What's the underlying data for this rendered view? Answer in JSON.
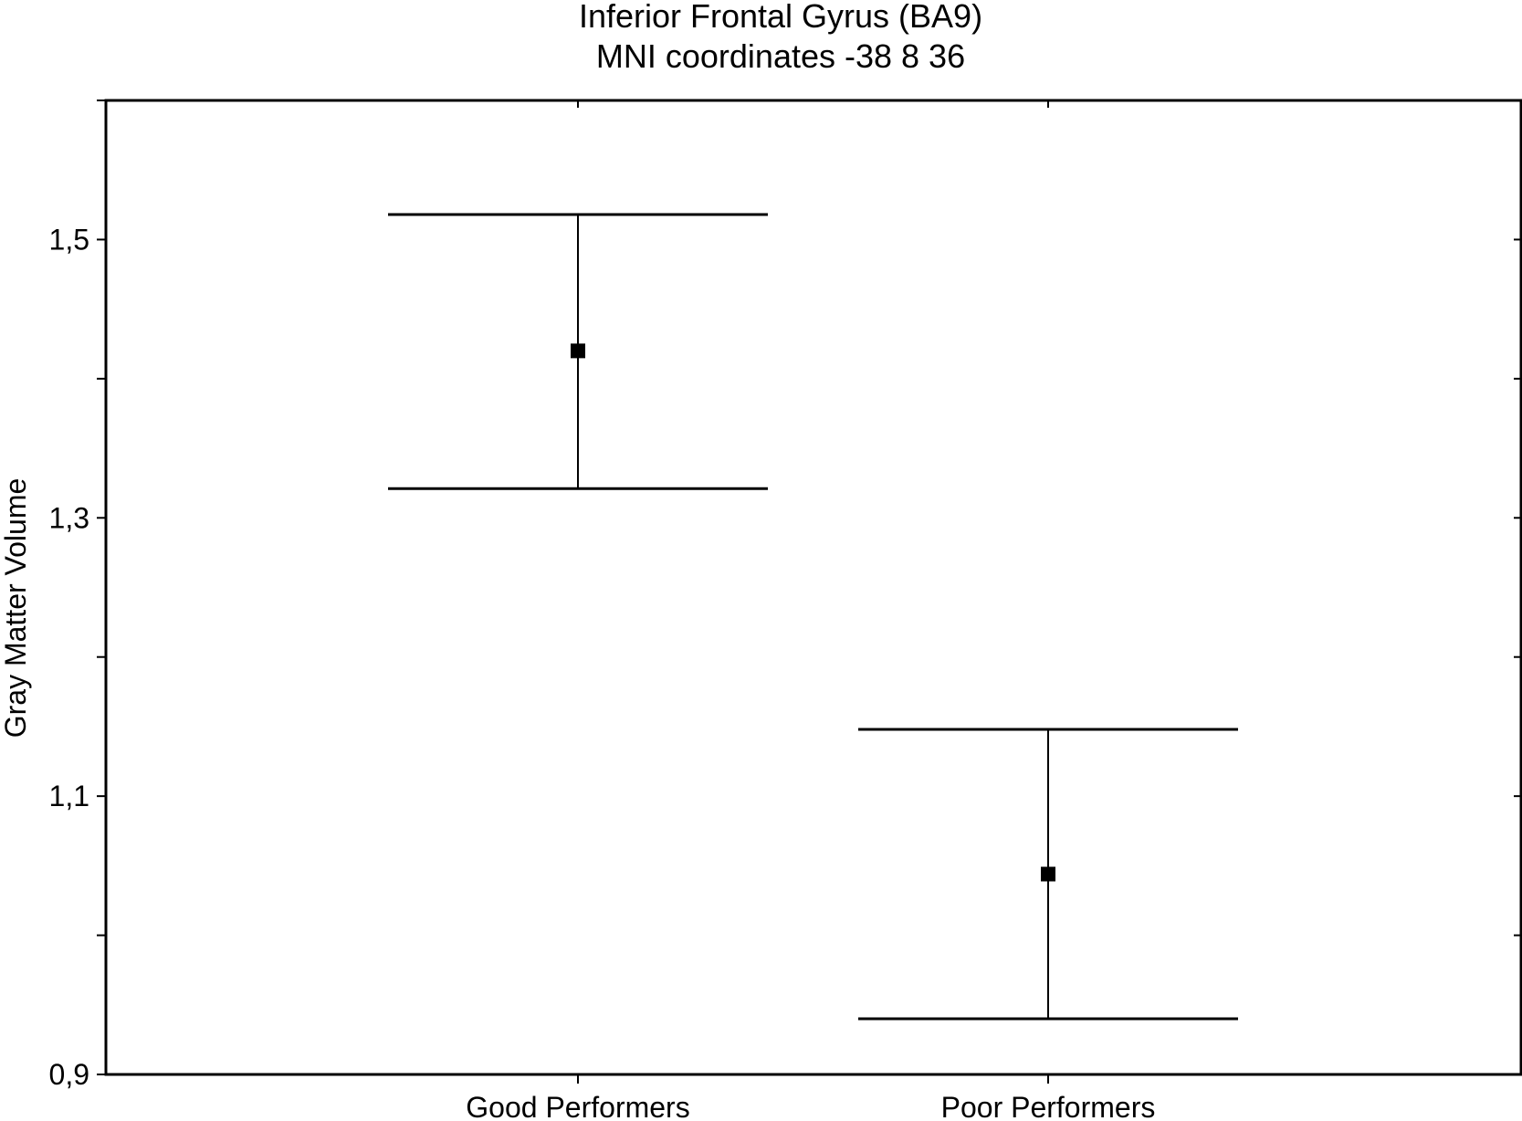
{
  "chart_data": {
    "type": "scatter",
    "title": [
      "Inferior Frontal Gyrus (BA9)",
      "MNI coordinates -38  8 36"
    ],
    "xlabel": "",
    "ylabel": "Gray Matter Volume",
    "categories": [
      "Good Performers",
      "Poor Performers"
    ],
    "series": [
      {
        "values": [
          1.42,
          1.044
        ],
        "error_upper": [
          1.518,
          1.148
        ],
        "error_lower": [
          1.321,
          0.94
        ]
      }
    ],
    "ylim": [
      0.9,
      1.6
    ],
    "yticks": [
      {
        "value": 0.9,
        "label": "0,9"
      },
      {
        "value": 1.1,
        "label": "1,1"
      },
      {
        "value": 1.3,
        "label": "1,3"
      },
      {
        "value": 1.5,
        "label": "1,5"
      }
    ],
    "yminor_step": 0.1,
    "grid": false,
    "legend": "none",
    "colors": {
      "marker": "#000000",
      "line": "#000000",
      "background": "#ffffff"
    }
  }
}
